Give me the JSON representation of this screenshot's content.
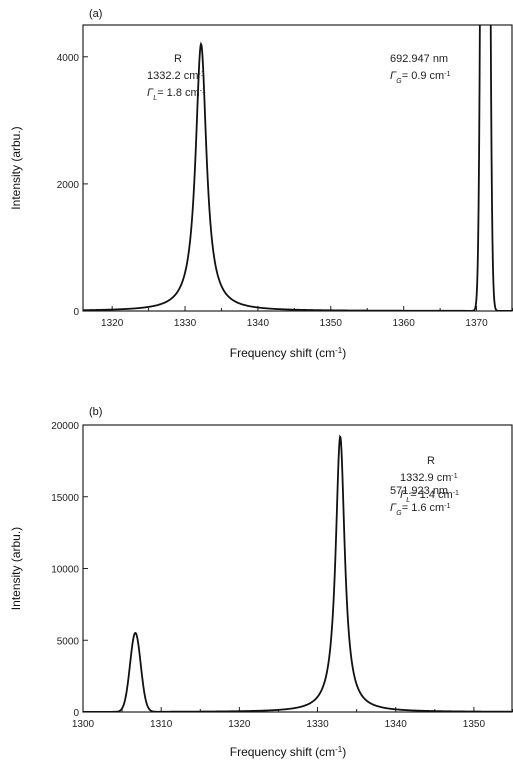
{
  "chart_data": [
    {
      "type": "line",
      "panel_label": "(a)",
      "xlabel": "Frequency shift (cm",
      "xlabel_sup": "-1",
      "xlabel_end": ")",
      "ylabel": "Intensity (arbu.)",
      "xlim": [
        1316,
        1375
      ],
      "ylim": [
        0,
        4500
      ],
      "xticks": [
        1320,
        1330,
        1340,
        1350,
        1360,
        1370
      ],
      "yticks": [
        0,
        2000,
        4000
      ],
      "grid": false,
      "peaks": [
        {
          "center": 1332.2,
          "height": 4200,
          "fwhm": 1.8,
          "shape": "lorentzian"
        },
        {
          "center": 1371.2,
          "height": 30000,
          "fwhm": 0.9,
          "shape": "gaussian"
        }
      ],
      "annotations": [
        {
          "lines": [
            {
              "text": "R"
            },
            {
              "text": "1332.2 cm",
              "sup": "-1"
            },
            {
              "prefix": "Γ",
              "sub": "L",
              "text": "= 1.8 cm",
              "sup": "-1"
            }
          ],
          "anchor": "middle"
        },
        {
          "lines": [
            {
              "text": "692.947 nm"
            },
            {
              "prefix": "Γ",
              "sub": "G",
              "text": "= 0.9 cm",
              "sup": "-1"
            }
          ],
          "anchor": "start"
        }
      ]
    },
    {
      "type": "line",
      "panel_label": "(b)",
      "xlabel": "Frequency shift (cm",
      "xlabel_sup": "-1",
      "xlabel_end": ")",
      "ylabel": "Intensity (arbu.)",
      "xlim": [
        1300,
        1355
      ],
      "ylim": [
        0,
        20000
      ],
      "xticks": [
        1300,
        1310,
        1320,
        1330,
        1340,
        1350
      ],
      "yticks": [
        0,
        5000,
        10000,
        15000,
        20000
      ],
      "grid": false,
      "peaks": [
        {
          "center": 1306.7,
          "height": 5500,
          "fwhm": 1.6,
          "shape": "gaussian"
        },
        {
          "center": 1332.9,
          "height": 19200,
          "fwhm": 1.4,
          "shape": "lorentzian"
        }
      ],
      "annotations": [
        {
          "lines": [
            {
              "text": "571.923 nm"
            },
            {
              "prefix": "Γ",
              "sub": "G",
              "text": "= 1.6 cm",
              "sup": "-1"
            }
          ],
          "anchor": "start"
        },
        {
          "lines": [
            {
              "text": "R"
            },
            {
              "text": "1332.9 cm",
              "sup": "-1"
            },
            {
              "prefix": "Γ",
              "sub": "L",
              "text": "= 1.4 cm",
              "sup": "-1"
            }
          ],
          "anchor": "middle"
        }
      ]
    }
  ]
}
